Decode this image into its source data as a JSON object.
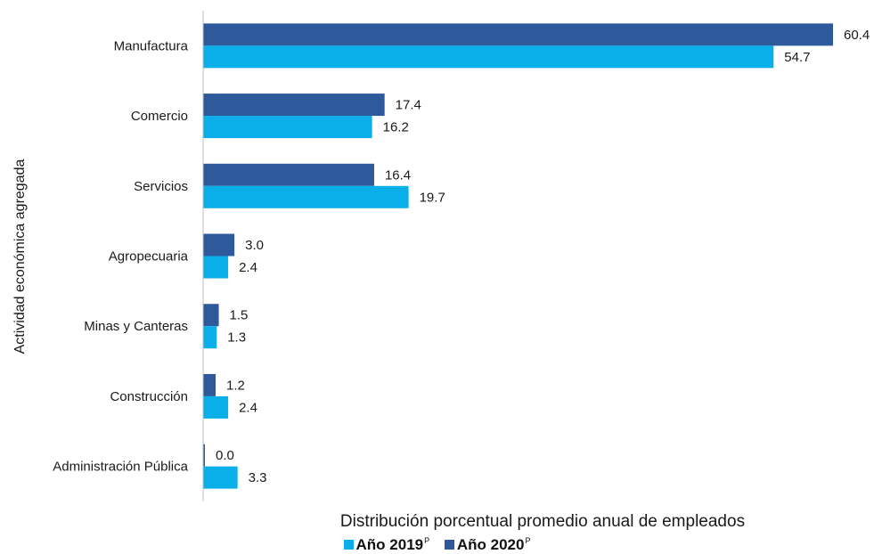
{
  "chart_data": {
    "type": "bar",
    "orientation": "horizontal",
    "categories": [
      "Manufactura",
      "Comercio",
      "Servicios",
      "Agropecuaria",
      "Minas y Canteras",
      "Construcción",
      "Administración Pública"
    ],
    "series": [
      {
        "name": "Año 2020",
        "sup": "P",
        "color": "#2e5a9c",
        "values": [
          60.4,
          17.4,
          16.4,
          3.0,
          1.5,
          1.2,
          0.0
        ],
        "labels": [
          "60.4",
          "17.4",
          "16.4",
          "3.0",
          "1.5",
          "1.2",
          "0.0"
        ]
      },
      {
        "name": "Año 2019",
        "sup": "P",
        "color": "#0aaee8",
        "values": [
          54.7,
          16.2,
          19.7,
          2.4,
          1.3,
          2.4,
          3.3
        ],
        "labels": [
          "54.7",
          "16.2",
          "19.7",
          "2.4",
          "1.3",
          "2.4",
          "3.3"
        ]
      }
    ],
    "xlabel": "Distribución porcentual promedio anual de empleados",
    "ylabel": "Actividad económica agregada",
    "xlim": [
      0,
      60.4
    ],
    "grid": false,
    "legend_position": "bottom"
  }
}
